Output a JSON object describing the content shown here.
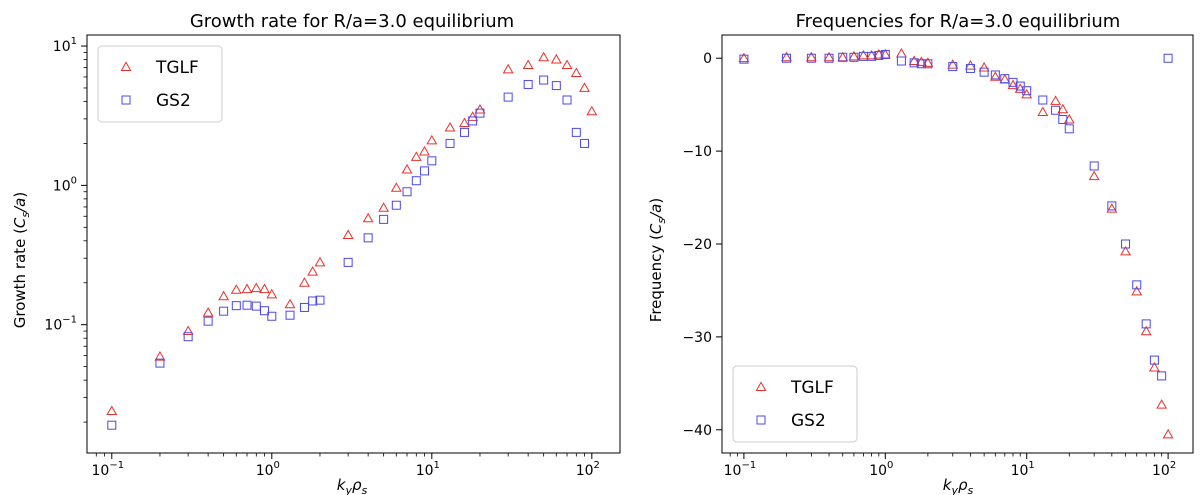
{
  "figure": {
    "left_title": "Growth rate for R/a=3.0 equilibrium",
    "right_title": "Frequencies for R/a=3.0 equilibrium"
  },
  "chart_data": [
    {
      "type": "scatter",
      "title": "Growth rate for R/a=3.0 equilibrium",
      "xlabel": "k_y ρ_s",
      "ylabel": "Growth rate (C_s/a)",
      "xscale": "log",
      "yscale": "log",
      "xlim": [
        0.07,
        150
      ],
      "ylim": [
        0.012,
        12
      ],
      "xticks": [
        0.1,
        1,
        10,
        100
      ],
      "xtick_labels": [
        {
          "base": "10",
          "exp": "−1"
        },
        {
          "base": "10",
          "exp": "0"
        },
        {
          "base": "10",
          "exp": "1"
        },
        {
          "base": "10",
          "exp": "2"
        }
      ],
      "yticks": [
        0.1,
        1,
        10
      ],
      "ytick_labels": [
        {
          "base": "10",
          "exp": "−1"
        },
        {
          "base": "10",
          "exp": "0"
        },
        {
          "base": "10",
          "exp": "1"
        }
      ],
      "legend_position": "upper-left",
      "series": [
        {
          "name": "TGLF",
          "marker": "triangle",
          "color": "#e8302a",
          "x": [
            0.1,
            0.2,
            0.3,
            0.4,
            0.5,
            0.6,
            0.7,
            0.8,
            0.9,
            1.0,
            1.3,
            1.6,
            1.8,
            2.0,
            3.0,
            4.0,
            5.0,
            6.0,
            7.0,
            8.0,
            9.0,
            10,
            13,
            16,
            18,
            20,
            30,
            40,
            50,
            60,
            70,
            80,
            90,
            100
          ],
          "y": [
            0.024,
            0.059,
            0.09,
            0.122,
            0.16,
            0.178,
            0.18,
            0.183,
            0.18,
            0.165,
            0.14,
            0.2,
            0.24,
            0.28,
            0.44,
            0.58,
            0.69,
            0.96,
            1.3,
            1.6,
            1.75,
            2.1,
            2.6,
            2.8,
            3.1,
            3.5,
            6.8,
            7.3,
            8.3,
            8.0,
            7.3,
            6.4,
            5.0,
            3.4
          ]
        },
        {
          "name": "GS2",
          "marker": "square",
          "color": "#4b48e8",
          "x": [
            0.1,
            0.2,
            0.3,
            0.4,
            0.5,
            0.6,
            0.7,
            0.8,
            0.9,
            1.0,
            1.3,
            1.6,
            1.8,
            2.0,
            3.0,
            4.0,
            5.0,
            6.0,
            7.0,
            8.0,
            9.0,
            10,
            13,
            16,
            18,
            20,
            30,
            40,
            50,
            60,
            70,
            80,
            90
          ],
          "y": [
            0.019,
            0.053,
            0.082,
            0.106,
            0.125,
            0.137,
            0.138,
            0.136,
            0.126,
            0.115,
            0.117,
            0.133,
            0.148,
            0.15,
            0.28,
            0.42,
            0.57,
            0.72,
            0.9,
            1.08,
            1.27,
            1.5,
            2.0,
            2.4,
            2.9,
            3.3,
            4.3,
            5.3,
            5.7,
            5.2,
            4.1,
            2.4,
            2.0
          ]
        }
      ]
    },
    {
      "type": "scatter",
      "title": "Frequencies for R/a=3.0 equilibrium",
      "xlabel": "k_y ρ_s",
      "ylabel": "Frequency (C_s/a)",
      "xscale": "log",
      "yscale": "linear",
      "xlim": [
        0.07,
        150
      ],
      "ylim": [
        -42.5,
        2.5
      ],
      "xticks": [
        0.1,
        1,
        10,
        100
      ],
      "xtick_labels": [
        {
          "base": "10",
          "exp": "−1"
        },
        {
          "base": "10",
          "exp": "0"
        },
        {
          "base": "10",
          "exp": "1"
        },
        {
          "base": "10",
          "exp": "2"
        }
      ],
      "yticks": [
        0,
        -10,
        -20,
        -30,
        -40
      ],
      "ytick_labels": [
        "0",
        "−10",
        "−20",
        "−30",
        "−40"
      ],
      "legend_position": "lower-left",
      "series": [
        {
          "name": "TGLF",
          "marker": "triangle",
          "color": "#e8302a",
          "x": [
            0.1,
            0.2,
            0.3,
            0.4,
            0.5,
            0.6,
            0.7,
            0.8,
            0.9,
            1.0,
            1.3,
            1.6,
            1.8,
            2.0,
            3.0,
            4.0,
            5.0,
            6.0,
            7.0,
            8.0,
            9.0,
            10,
            13,
            16,
            18,
            20,
            30,
            40,
            50,
            60,
            70,
            80,
            90,
            100
          ],
          "y": [
            0.0,
            0.1,
            0.1,
            0.1,
            0.1,
            0.2,
            0.3,
            0.3,
            0.4,
            0.4,
            0.5,
            -0.3,
            -0.4,
            -0.5,
            -0.7,
            -0.8,
            -1.0,
            -2.0,
            -2.3,
            -2.9,
            -3.3,
            -3.9,
            -5.8,
            -4.6,
            -5.5,
            -6.6,
            -12.7,
            -16.2,
            -20.8,
            -25.1,
            -29.4,
            -33.3,
            -37.3,
            -40.5
          ]
        },
        {
          "name": "GS2",
          "marker": "square",
          "color": "#4b48e8",
          "x": [
            0.1,
            0.2,
            0.3,
            0.4,
            0.5,
            0.6,
            0.7,
            0.8,
            0.9,
            1.0,
            1.3,
            1.6,
            1.8,
            2.0,
            3.0,
            4.0,
            5.0,
            6.0,
            7.0,
            8.0,
            9.0,
            10,
            13,
            16,
            18,
            20,
            30,
            40,
            50,
            60,
            70,
            80,
            90,
            100
          ],
          "y": [
            -0.1,
            0.0,
            0.0,
            0.0,
            0.1,
            0.1,
            0.2,
            0.2,
            0.3,
            0.4,
            -0.3,
            -0.5,
            -0.6,
            -0.6,
            -0.9,
            -1.1,
            -1.5,
            -1.8,
            -2.2,
            -2.6,
            -3.0,
            -3.5,
            -4.5,
            -5.6,
            -6.6,
            -7.6,
            -11.6,
            -15.9,
            -20.0,
            -24.4,
            -28.6,
            -32.5,
            -34.2,
            0.0
          ]
        }
      ]
    }
  ]
}
